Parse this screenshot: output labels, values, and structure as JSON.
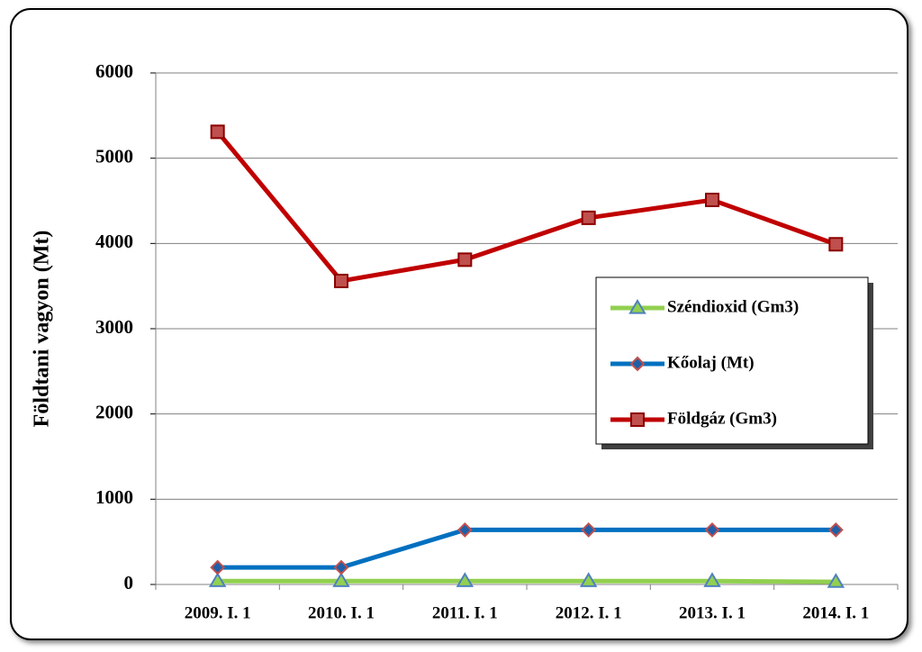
{
  "chart_data": {
    "type": "line",
    "y_label": "Földtani vagyon (Mt)",
    "categories": [
      "2009. I. 1",
      "2010. I. 1",
      "2011. I. 1",
      "2012. I. 1",
      "2013. I. 1",
      "2014. I. 1"
    ],
    "series": [
      {
        "name": "Széndioxid (Gm3)",
        "color": "#92d050",
        "marker": "triangle",
        "values": [
          40,
          40,
          40,
          40,
          40,
          30
        ]
      },
      {
        "name": "Kőolaj (Mt)",
        "color": "#0070c0",
        "marker": "diamond",
        "values": [
          200,
          200,
          640,
          640,
          640,
          640
        ]
      },
      {
        "name": "Földgáz (Gm3)",
        "color": "#c00000",
        "marker": "square",
        "values": [
          5310,
          3560,
          3810,
          4300,
          4510,
          3990
        ]
      }
    ],
    "ylim": [
      0,
      6000
    ],
    "yticks": [
      0,
      1000,
      2000,
      3000,
      4000,
      5000,
      6000
    ],
    "grid": true,
    "legend": "right"
  }
}
